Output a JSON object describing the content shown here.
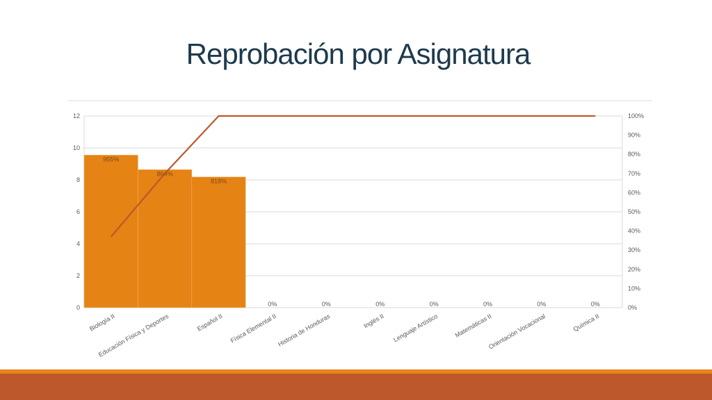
{
  "slide": {
    "title": "Reprobación por Asignatura",
    "colors": {
      "title": "#1e3a4c",
      "footer_band": "#bd582c",
      "footer_thin": "#e8841a"
    }
  },
  "chart_data": {
    "type": "bar",
    "categories": [
      "Biología II",
      "Educación Física y Deportes",
      "Español II",
      "Física Elemental II",
      "Historia de Honduras",
      "Inglés II",
      "Lenguaje Artístico",
      "Matemáticas II",
      "Orientación Vocacional",
      "Química II"
    ],
    "series": [
      {
        "type": "bar",
        "values": [
          9.55,
          8.64,
          8.18,
          0,
          0,
          0,
          0,
          0,
          0,
          0
        ],
        "data_labels": [
          "955%",
          "864%",
          "818%",
          "0%",
          "0%",
          "0%",
          "0%",
          "0%",
          "0%",
          "0%"
        ],
        "color": "#e58314"
      },
      {
        "type": "line",
        "axis": "secondary",
        "values": [
          0.37,
          0.7,
          1.0,
          1.0,
          1.0,
          1.0,
          1.0,
          1.0,
          1.0,
          1.0
        ],
        "color": "#bd582c"
      }
    ],
    "y_axis": {
      "min": 0,
      "max": 12,
      "ticks": [
        "0",
        "2",
        "4",
        "6",
        "8",
        "10",
        "12"
      ]
    },
    "y2_axis": {
      "min": 0,
      "max": 1,
      "ticks": [
        "0%",
        "10%",
        "20%",
        "30%",
        "40%",
        "50%",
        "60%",
        "70%",
        "80%",
        "90%",
        "100%"
      ]
    },
    "grid": true,
    "legend": "none"
  }
}
